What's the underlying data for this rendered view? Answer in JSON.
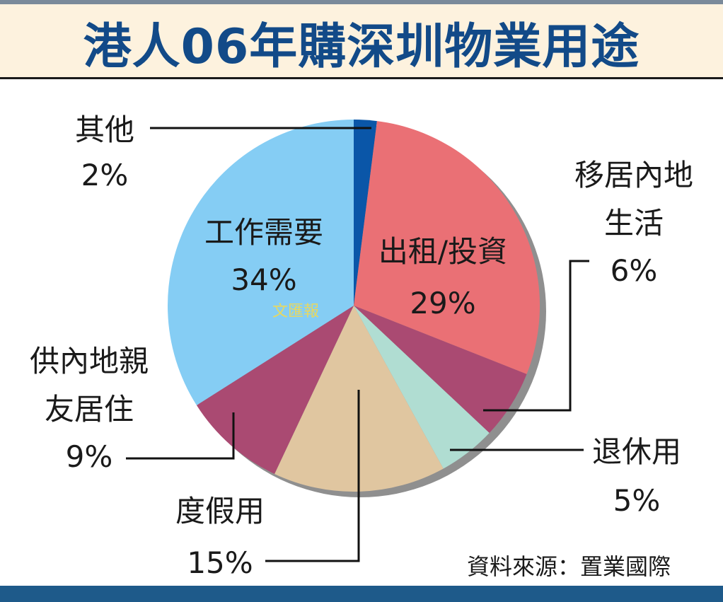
{
  "title": "港人06年購深圳物業用途",
  "source": "資料來源：置業國際",
  "watermark": "文匯報",
  "colors": {
    "title": "#124a88",
    "title_band": "#fdf2de",
    "bottom_bar": "#1e5a8a"
  },
  "chart_data": {
    "type": "pie",
    "title": "港人06年購深圳物業用途",
    "slices": [
      {
        "label": "其他",
        "value": 2,
        "value_label": "2%",
        "color": "#0a56a8"
      },
      {
        "label": "出租/投資",
        "value": 29,
        "value_label": "29%",
        "color": "#ea7075"
      },
      {
        "label": "移居內地生活",
        "value": 6,
        "value_label": "6%",
        "color": "#aa4a72"
      },
      {
        "label": "退休用",
        "value": 5,
        "value_label": "5%",
        "color": "#b0ddd2"
      },
      {
        "label": "度假用",
        "value": 15,
        "value_label": "15%",
        "color": "#e0c6a0"
      },
      {
        "label": "供內地親友居住",
        "value": 9,
        "value_label": "9%",
        "color": "#aa4a72"
      },
      {
        "label": "工作需要",
        "value": 34,
        "value_label": "34%",
        "color": "#85cdf4"
      }
    ]
  }
}
